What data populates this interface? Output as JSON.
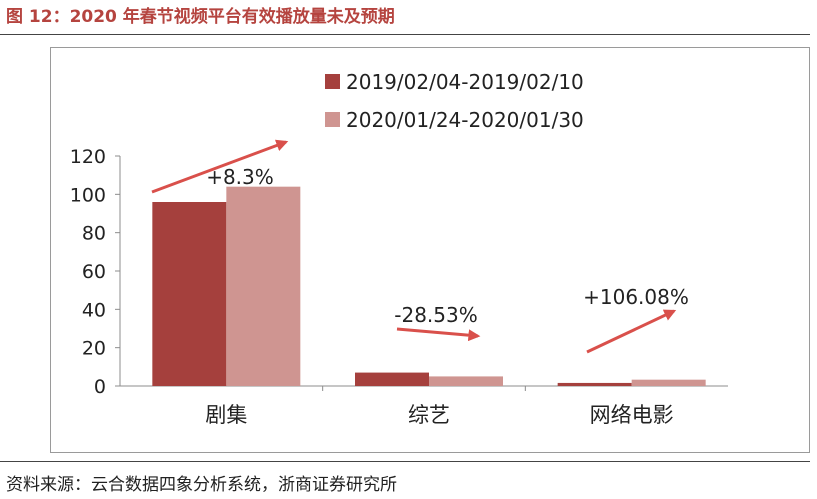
{
  "figure": {
    "title": "图 12：2020 年春节视频平台有效播放量未及预期",
    "source": "资料来源：云合数据四象分析系统，浙商证券研究所"
  },
  "colors": {
    "title": "#b5443f",
    "series1": "#a5403d",
    "series2": "#cf9591",
    "arrow": "#d9504b"
  },
  "chart_data": {
    "type": "bar",
    "categories": [
      "剧集",
      "综艺",
      "网络电影"
    ],
    "series": [
      {
        "name": "2019/02/04-2019/02/10",
        "values": [
          96,
          7,
          1.6
        ]
      },
      {
        "name": "2020/01/24-2020/01/30",
        "values": [
          104,
          5,
          3.3
        ]
      }
    ],
    "ylim": [
      0,
      120
    ],
    "yticks": [
      0,
      20,
      40,
      60,
      80,
      100,
      120
    ],
    "legend_position": "top",
    "grid": false,
    "annotations": [
      "+8.3%",
      "-28.53%",
      "+106.08%"
    ]
  }
}
